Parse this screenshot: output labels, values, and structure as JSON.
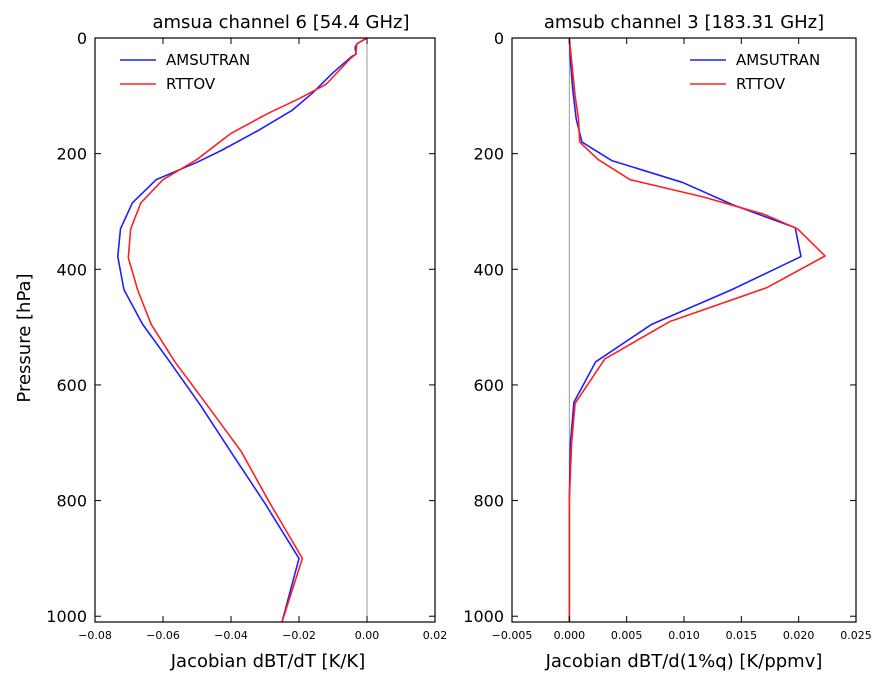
{
  "chart_data": [
    {
      "type": "line",
      "title": "amsua channel 6 [54.4 GHz]",
      "xlabel": "Jacobian dBT/dT [K/K]",
      "ylabel": "Pressure [hPa]",
      "xlim": [
        -0.08,
        0.02
      ],
      "ylim": [
        1010,
        0
      ],
      "y_inverted": true,
      "grid": false,
      "legend_position": "top-left",
      "xticks": [
        -0.08,
        -0.06,
        -0.04,
        -0.02,
        0.0,
        0.02
      ],
      "xtick_labels": [
        "−0.08",
        "−0.06",
        "−0.04",
        "−0.02",
        "0.00",
        "0.02"
      ],
      "yticks": [
        0,
        200,
        400,
        600,
        800,
        1000
      ],
      "ytick_labels": [
        "0",
        "200",
        "400",
        "600",
        "800",
        "1000"
      ],
      "zero_line": 0,
      "series": [
        {
          "name": "AMSUTRAN",
          "color": "#1f1fff",
          "points": [
            [
              0.0,
              0
            ],
            [
              -0.003,
              10
            ],
            [
              -0.0035,
              17
            ],
            [
              -0.0032,
              28
            ],
            [
              -0.0045,
              32
            ],
            [
              -0.01,
              60
            ],
            [
              -0.016,
              95
            ],
            [
              -0.022,
              125
            ],
            [
              -0.032,
              160
            ],
            [
              -0.043,
              195
            ],
            [
              -0.05,
              215
            ],
            [
              -0.062,
              245
            ],
            [
              -0.069,
              285
            ],
            [
              -0.0725,
              330
            ],
            [
              -0.0733,
              378
            ],
            [
              -0.0715,
              435
            ],
            [
              -0.066,
              495
            ],
            [
              -0.058,
              560
            ],
            [
              -0.049,
              635
            ],
            [
              -0.039,
              725
            ],
            [
              -0.03,
              805
            ],
            [
              -0.02,
              900
            ],
            [
              -0.025,
              1010
            ]
          ]
        },
        {
          "name": "RTTOV",
          "color": "#ff2020",
          "points": [
            [
              0.0,
              0
            ],
            [
              -0.003,
              10
            ],
            [
              -0.0033,
              28
            ],
            [
              -0.0048,
              35
            ],
            [
              -0.012,
              80
            ],
            [
              -0.02,
              105
            ],
            [
              -0.029,
              130
            ],
            [
              -0.04,
              165
            ],
            [
              -0.05,
              210
            ],
            [
              -0.06,
              245
            ],
            [
              -0.0665,
              285
            ],
            [
              -0.0695,
              330
            ],
            [
              -0.0702,
              380
            ],
            [
              -0.0675,
              435
            ],
            [
              -0.0635,
              495
            ],
            [
              -0.0565,
              560
            ],
            [
              -0.047,
              635
            ],
            [
              -0.037,
              715
            ],
            [
              -0.029,
              800
            ],
            [
              -0.019,
              900
            ],
            [
              -0.025,
              1010
            ]
          ]
        }
      ]
    },
    {
      "type": "line",
      "title": "amsub channel 3 [183.31 GHz]",
      "xlabel": "Jacobian dBT/d(1%q) [K/ppmv]",
      "ylabel": "",
      "xlim": [
        -0.005,
        0.025
      ],
      "ylim": [
        1010,
        0
      ],
      "y_inverted": true,
      "grid": false,
      "legend_position": "top-right",
      "xticks": [
        -0.005,
        0.0,
        0.005,
        0.01,
        0.015,
        0.02,
        0.025
      ],
      "xtick_labels": [
        "−0.005",
        "0.000",
        "0.005",
        "0.010",
        "0.015",
        "0.020",
        "0.025"
      ],
      "yticks": [
        0,
        200,
        400,
        600,
        800,
        1000
      ],
      "ytick_labels": [
        "0",
        "200",
        "400",
        "600",
        "800",
        "1000"
      ],
      "zero_line": 0,
      "series": [
        {
          "name": "AMSUTRAN",
          "color": "#1f1fff",
          "points": [
            [
              0.0,
              0
            ],
            [
              0.0001,
              40
            ],
            [
              0.0003,
              90
            ],
            [
              0.0006,
              140
            ],
            [
              0.0011,
              180
            ],
            [
              0.0037,
              212
            ],
            [
              0.0099,
              250
            ],
            [
              0.0142,
              288
            ],
            [
              0.0172,
              310
            ],
            [
              0.0197,
              328
            ],
            [
              0.0202,
              378
            ],
            [
              0.0142,
              435
            ],
            [
              0.0072,
              495
            ],
            [
              0.0023,
              560
            ],
            [
              0.0004,
              630
            ],
            [
              0.0001,
              700
            ],
            [
              0.0,
              800
            ],
            [
              0.0,
              1010
            ]
          ]
        },
        {
          "name": "RTTOV",
          "color": "#ff2020",
          "points": [
            [
              0.0,
              0
            ],
            [
              0.0002,
              40
            ],
            [
              0.0005,
              100
            ],
            [
              0.0008,
              140
            ],
            [
              0.0009,
              180
            ],
            [
              0.0025,
              210
            ],
            [
              0.0053,
              245
            ],
            [
              0.0117,
              275
            ],
            [
              0.017,
              305
            ],
            [
              0.0199,
              330
            ],
            [
              0.0223,
              377
            ],
            [
              0.0172,
              432
            ],
            [
              0.0088,
              490
            ],
            [
              0.0031,
              555
            ],
            [
              0.0005,
              632
            ],
            [
              0.0002,
              700
            ],
            [
              0.0,
              800
            ],
            [
              0.0,
              1010
            ]
          ]
        }
      ]
    }
  ]
}
